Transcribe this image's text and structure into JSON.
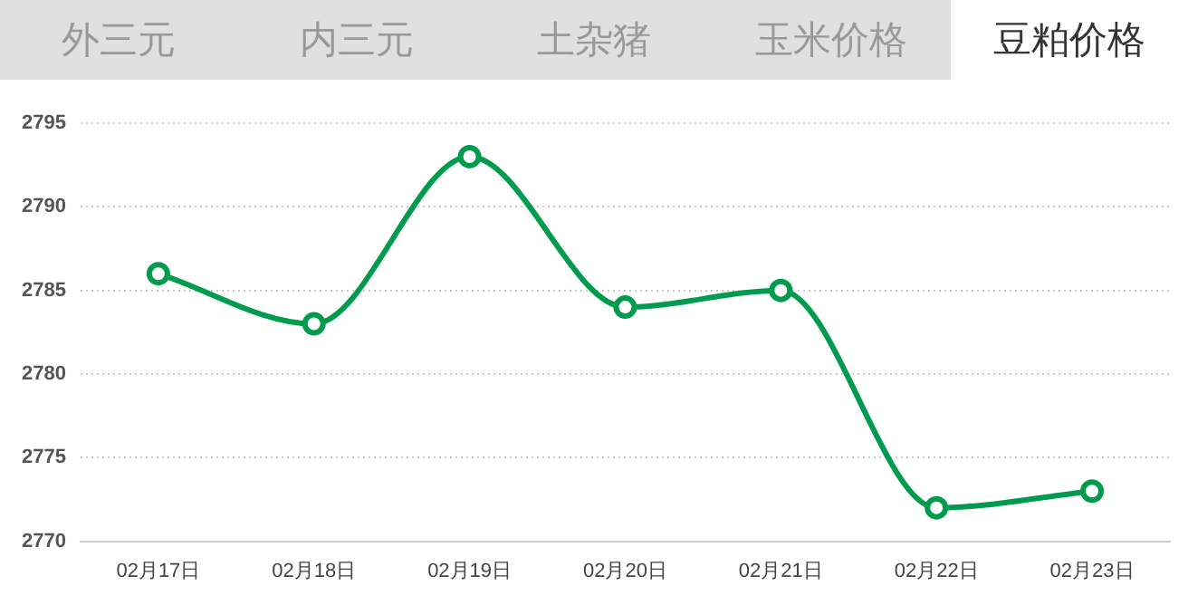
{
  "chart_data": {
    "type": "line",
    "title": "豆粕价格",
    "annotations": [
      "外三元",
      "内三元",
      "土杂猪",
      "玉米价格"
    ],
    "categories": [
      "02月17日",
      "02月18日",
      "02月19日",
      "02月20日",
      "02月21日",
      "02月22日",
      "02月23日"
    ],
    "series": [
      {
        "color": "#009b4c",
        "values": [
          2786,
          2783,
          2793,
          2784,
          2785,
          2772,
          2773
        ]
      }
    ],
    "ylim": [
      2770,
      2795
    ],
    "yticks": [
      2770,
      2775,
      2780,
      2785,
      2790,
      2795
    ],
    "grid": "y",
    "legend": false,
    "marker": "circle",
    "line_style": "solid"
  }
}
